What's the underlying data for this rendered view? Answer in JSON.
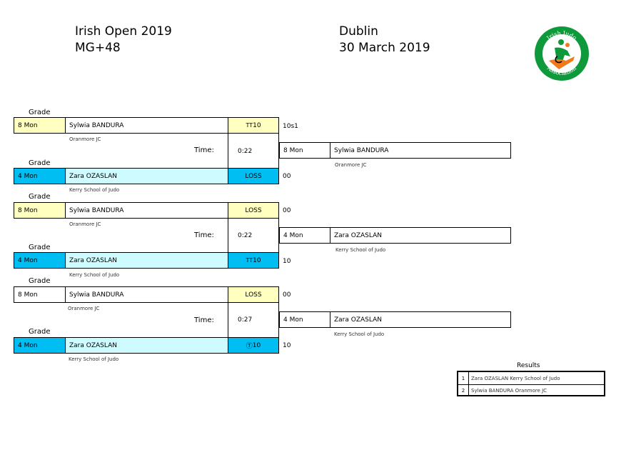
{
  "header": {
    "event": "Irish Open 2019",
    "category": "MG+48",
    "location": "Dublin",
    "date": "30 March 2019",
    "logo_text": "Irish Judo Association"
  },
  "labels": {
    "grade": "Grade",
    "time": "Time:"
  },
  "contests": [
    {
      "white": {
        "grade": "8 Mon",
        "name": "Sylwia BANDURA",
        "club": "Oranmore JC",
        "score": "10",
        "score_prefix": "TT",
        "side": "10s1"
      },
      "blue": {
        "grade": "4 Mon",
        "name": "Zara OZASLAN",
        "club": "Kerry School of Judo",
        "score": "LOSS",
        "score_prefix": "",
        "side": "00"
      },
      "time": "0:22",
      "winner": {
        "grade": "8 Mon",
        "name": "Sylwia BANDURA",
        "club": "Oranmore JC"
      }
    },
    {
      "white": {
        "grade": "8 Mon",
        "name": "Sylwia BANDURA",
        "club": "Oranmore JC",
        "score": "LOSS",
        "score_prefix": "",
        "side": "00"
      },
      "blue": {
        "grade": "4 Mon",
        "name": "Zara OZASLAN",
        "club": "Kerry School of Judo",
        "score": "10",
        "score_prefix": "TT",
        "side": "10"
      },
      "time": "0:22",
      "winner": {
        "grade": "4 Mon",
        "name": "Zara OZASLAN",
        "club": "Kerry School of Judo"
      }
    },
    {
      "white": {
        "grade": "8 Mon",
        "name": "Sylwia BANDURA",
        "club": "Oranmore JC",
        "score": "LOSS",
        "score_prefix": "",
        "side": "00"
      },
      "blue": {
        "grade": "4 Mon",
        "name": "Zara OZASLAN",
        "club": "Kerry School of Judo",
        "score": "10",
        "score_prefix": "Ⓣ",
        "side": "10"
      },
      "time": "0:27",
      "winner": {
        "grade": "4 Mon",
        "name": "Zara OZASLAN",
        "club": "Kerry School of Judo"
      }
    }
  ],
  "results": {
    "title": "Results",
    "rows": [
      {
        "rank": "1",
        "text": "Zara OZASLAN Kerry School of Judo"
      },
      {
        "rank": "2",
        "text": "Sylwia BANDURA Oranmore JC"
      }
    ]
  },
  "colors": {
    "white_grade_bg": "#ffffc0",
    "blue_grade_bg": "#00bdf2",
    "blue_name_bg": "#cdfbff",
    "logo_green": "#0e9a3a",
    "logo_orange": "#f07a1a"
  }
}
